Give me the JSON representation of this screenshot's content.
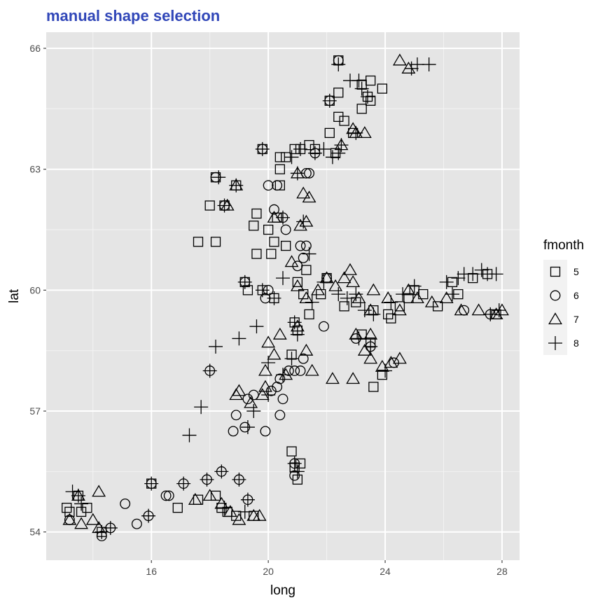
{
  "chart_data": {
    "type": "scatter",
    "title": "manual shape selection",
    "title_color": "#3046b8",
    "xlabel": "long",
    "ylabel": "lat",
    "xlim": [
      12.4,
      28.6
    ],
    "ylim": [
      53.3,
      66.4
    ],
    "xticks": [
      16,
      20,
      24,
      28
    ],
    "yticks": [
      54,
      57,
      60,
      63,
      66
    ],
    "grid": true,
    "panel_color": "#e5e5e5",
    "legend": {
      "title": "fmonth",
      "position": "right",
      "entries": [
        {
          "label": "5",
          "shape": "square"
        },
        {
          "label": "6",
          "shape": "circle"
        },
        {
          "label": "7",
          "shape": "triangle"
        },
        {
          "label": "8",
          "shape": "plus"
        }
      ]
    },
    "series": [
      {
        "name": "5",
        "shape": "square",
        "points": [
          [
            13.1,
            54.6
          ],
          [
            13.2,
            54.5
          ],
          [
            13.6,
            54.5
          ],
          [
            13.8,
            54.6
          ],
          [
            13.5,
            54.9
          ],
          [
            14.3,
            54.0
          ],
          [
            16.0,
            55.2
          ],
          [
            16.9,
            54.6
          ],
          [
            17.6,
            54.8
          ],
          [
            18.2,
            54.9
          ],
          [
            18.4,
            54.6
          ],
          [
            18.6,
            54.5
          ],
          [
            18.9,
            54.4
          ],
          [
            19.5,
            54.4
          ],
          [
            17.6,
            61.2
          ],
          [
            18.2,
            61.2
          ],
          [
            18.0,
            62.1
          ],
          [
            18.2,
            62.8
          ],
          [
            18.5,
            62.1
          ],
          [
            18.9,
            62.6
          ],
          [
            19.2,
            60.2
          ],
          [
            19.3,
            60.0
          ],
          [
            19.5,
            61.6
          ],
          [
            19.6,
            61.9
          ],
          [
            19.6,
            60.9
          ],
          [
            19.8,
            60.0
          ],
          [
            19.8,
            63.5
          ],
          [
            20.0,
            61.5
          ],
          [
            20.1,
            60.9
          ],
          [
            20.2,
            61.2
          ],
          [
            20.2,
            59.8
          ],
          [
            20.3,
            61.8
          ],
          [
            20.4,
            62.6
          ],
          [
            20.4,
            63.3
          ],
          [
            20.4,
            63.0
          ],
          [
            20.6,
            63.3
          ],
          [
            20.6,
            61.1
          ],
          [
            20.9,
            63.5
          ],
          [
            21.1,
            63.5
          ],
          [
            21.4,
            63.6
          ],
          [
            21.6,
            63.5
          ],
          [
            21.3,
            60.5
          ],
          [
            21.0,
            60.2
          ],
          [
            21.2,
            59.9
          ],
          [
            21.4,
            59.4
          ],
          [
            21.8,
            59.9
          ],
          [
            22.0,
            60.3
          ],
          [
            22.1,
            63.9
          ],
          [
            22.3,
            63.4
          ],
          [
            22.1,
            64.7
          ],
          [
            22.4,
            64.9
          ],
          [
            22.4,
            64.3
          ],
          [
            22.6,
            64.2
          ],
          [
            22.4,
            65.7
          ],
          [
            22.9,
            63.9
          ],
          [
            23.2,
            64.5
          ],
          [
            23.2,
            65.1
          ],
          [
            23.4,
            64.8
          ],
          [
            23.5,
            65.2
          ],
          [
            23.5,
            64.7
          ],
          [
            23.9,
            65.0
          ],
          [
            22.6,
            59.6
          ],
          [
            23.0,
            59.7
          ],
          [
            23.2,
            58.9
          ],
          [
            23.5,
            58.7
          ],
          [
            23.6,
            59.5
          ],
          [
            23.6,
            57.6
          ],
          [
            23.9,
            57.9
          ],
          [
            24.1,
            59.4
          ],
          [
            24.2,
            59.3
          ],
          [
            24.5,
            59.6
          ],
          [
            24.8,
            59.8
          ],
          [
            25.0,
            60.0
          ],
          [
            25.3,
            59.9
          ],
          [
            25.8,
            59.6
          ],
          [
            26.3,
            60.2
          ],
          [
            26.5,
            59.9
          ],
          [
            27.0,
            60.3
          ],
          [
            27.5,
            60.4
          ],
          [
            27.8,
            59.4
          ],
          [
            20.8,
            56.0
          ],
          [
            20.9,
            55.6
          ],
          [
            21.0,
            55.3
          ],
          [
            21.1,
            55.7
          ],
          [
            20.9,
            59.2
          ],
          [
            21.0,
            59.0
          ],
          [
            20.8,
            58.4
          ]
        ]
      },
      {
        "name": "6",
        "shape": "circle",
        "points": [
          [
            13.2,
            54.3
          ],
          [
            14.3,
            53.9
          ],
          [
            14.6,
            54.1
          ],
          [
            15.1,
            54.7
          ],
          [
            15.5,
            54.2
          ],
          [
            15.9,
            54.4
          ],
          [
            16.5,
            54.9
          ],
          [
            16.6,
            54.9
          ],
          [
            17.1,
            55.2
          ],
          [
            17.9,
            55.3
          ],
          [
            18.4,
            55.5
          ],
          [
            19.0,
            55.3
          ],
          [
            19.3,
            54.8
          ],
          [
            16.0,
            55.2
          ],
          [
            18.0,
            58.0
          ],
          [
            18.8,
            56.5
          ],
          [
            18.9,
            56.9
          ],
          [
            19.2,
            56.6
          ],
          [
            19.3,
            57.3
          ],
          [
            19.5,
            57.4
          ],
          [
            19.9,
            56.5
          ],
          [
            20.1,
            57.5
          ],
          [
            20.3,
            57.6
          ],
          [
            20.4,
            57.8
          ],
          [
            20.4,
            56.9
          ],
          [
            20.5,
            57.3
          ],
          [
            20.7,
            58.0
          ],
          [
            20.9,
            58.0
          ],
          [
            21.1,
            58.0
          ],
          [
            21.2,
            58.3
          ],
          [
            19.2,
            60.2
          ],
          [
            19.9,
            59.8
          ],
          [
            20.0,
            60.0
          ],
          [
            20.2,
            62.0
          ],
          [
            20.0,
            62.6
          ],
          [
            20.3,
            62.6
          ],
          [
            20.5,
            61.8
          ],
          [
            20.6,
            61.5
          ],
          [
            21.1,
            61.1
          ],
          [
            21.3,
            61.1
          ],
          [
            21.2,
            60.8
          ],
          [
            21.0,
            60.6
          ],
          [
            21.3,
            62.9
          ],
          [
            21.6,
            63.4
          ],
          [
            21.9,
            59.1
          ],
          [
            22.0,
            60.3
          ],
          [
            18.2,
            62.8
          ],
          [
            18.5,
            62.1
          ],
          [
            19.8,
            63.5
          ],
          [
            21.4,
            62.9
          ],
          [
            22.1,
            64.7
          ],
          [
            22.4,
            65.7
          ],
          [
            23.0,
            58.8
          ],
          [
            23.5,
            58.6
          ],
          [
            24.3,
            58.2
          ],
          [
            26.7,
            59.5
          ],
          [
            27.6,
            59.4
          ],
          [
            20.9,
            55.7
          ],
          [
            20.9,
            55.4
          ]
        ]
      },
      {
        "name": "7",
        "shape": "triangle",
        "points": [
          [
            13.2,
            54.3
          ],
          [
            13.5,
            54.9
          ],
          [
            13.6,
            54.2
          ],
          [
            14.0,
            54.3
          ],
          [
            14.2,
            55.0
          ],
          [
            14.2,
            54.1
          ],
          [
            17.5,
            54.8
          ],
          [
            18.0,
            54.9
          ],
          [
            18.4,
            54.7
          ],
          [
            18.7,
            54.5
          ],
          [
            19.0,
            54.3
          ],
          [
            19.5,
            54.4
          ],
          [
            19.7,
            54.4
          ],
          [
            18.9,
            57.4
          ],
          [
            19.0,
            57.5
          ],
          [
            19.4,
            57.2
          ],
          [
            19.8,
            57.4
          ],
          [
            19.9,
            57.6
          ],
          [
            19.9,
            58.0
          ],
          [
            20.0,
            58.7
          ],
          [
            20.2,
            58.4
          ],
          [
            20.4,
            58.9
          ],
          [
            20.6,
            57.9
          ],
          [
            21.5,
            58.0
          ],
          [
            22.2,
            57.8
          ],
          [
            22.9,
            57.8
          ],
          [
            23.5,
            58.3
          ],
          [
            18.9,
            62.6
          ],
          [
            18.6,
            62.1
          ],
          [
            20.2,
            61.8
          ],
          [
            21.1,
            61.6
          ],
          [
            21.3,
            61.7
          ],
          [
            21.2,
            62.4
          ],
          [
            21.4,
            62.3
          ],
          [
            21.0,
            62.9
          ],
          [
            22.5,
            63.6
          ],
          [
            23.0,
            63.9
          ],
          [
            22.9,
            64.0
          ],
          [
            23.3,
            63.9
          ],
          [
            24.5,
            65.7
          ],
          [
            24.8,
            65.5
          ],
          [
            20.8,
            60.7
          ],
          [
            21.0,
            60.1
          ],
          [
            21.3,
            59.8
          ],
          [
            21.7,
            60.0
          ],
          [
            22.0,
            60.3
          ],
          [
            22.3,
            60.1
          ],
          [
            22.6,
            60.3
          ],
          [
            22.9,
            60.2
          ],
          [
            23.1,
            59.8
          ],
          [
            23.5,
            59.5
          ],
          [
            23.6,
            60.0
          ],
          [
            24.1,
            59.8
          ],
          [
            24.5,
            59.5
          ],
          [
            24.8,
            60.0
          ],
          [
            25.1,
            59.8
          ],
          [
            25.6,
            59.7
          ],
          [
            26.1,
            59.8
          ],
          [
            26.6,
            59.5
          ],
          [
            27.2,
            59.5
          ],
          [
            27.8,
            59.4
          ],
          [
            28.0,
            59.5
          ],
          [
            23.0,
            58.9
          ],
          [
            23.3,
            58.5
          ],
          [
            23.5,
            58.9
          ],
          [
            23.9,
            58.1
          ],
          [
            24.2,
            58.2
          ],
          [
            24.5,
            58.3
          ],
          [
            21.0,
            59.1
          ],
          [
            21.3,
            58.5
          ],
          [
            22.8,
            60.5
          ]
        ]
      },
      {
        "name": "8",
        "shape": "plus",
        "points": [
          [
            13.3,
            55.0
          ],
          [
            13.5,
            54.9
          ],
          [
            13.6,
            54.7
          ],
          [
            14.3,
            54.0
          ],
          [
            14.6,
            54.1
          ],
          [
            15.9,
            54.4
          ],
          [
            16.0,
            55.2
          ],
          [
            17.1,
            55.2
          ],
          [
            17.9,
            55.3
          ],
          [
            18.4,
            55.5
          ],
          [
            19.0,
            55.3
          ],
          [
            19.3,
            54.8
          ],
          [
            18.5,
            54.6
          ],
          [
            19.2,
            54.5
          ],
          [
            17.3,
            56.4
          ],
          [
            17.7,
            57.1
          ],
          [
            18.2,
            58.6
          ],
          [
            19.0,
            58.8
          ],
          [
            19.6,
            59.1
          ],
          [
            20.5,
            60.3
          ],
          [
            18.0,
            58.0
          ],
          [
            19.3,
            56.6
          ],
          [
            20.0,
            57.4
          ],
          [
            19.5,
            57.0
          ],
          [
            20.0,
            58.2
          ],
          [
            20.5,
            57.9
          ],
          [
            20.8,
            58.3
          ],
          [
            18.3,
            62.8
          ],
          [
            18.5,
            62.1
          ],
          [
            18.9,
            62.6
          ],
          [
            19.2,
            60.2
          ],
          [
            19.8,
            63.5
          ],
          [
            19.8,
            60.0
          ],
          [
            20.2,
            59.8
          ],
          [
            20.5,
            61.8
          ],
          [
            20.8,
            63.3
          ],
          [
            21.1,
            63.5
          ],
          [
            21.6,
            63.4
          ],
          [
            21.9,
            63.5
          ],
          [
            22.2,
            63.3
          ],
          [
            22.4,
            63.4
          ],
          [
            21.0,
            62.9
          ],
          [
            21.2,
            61.7
          ],
          [
            21.4,
            60.9
          ],
          [
            21.5,
            59.7
          ],
          [
            21.9,
            60.2
          ],
          [
            22.4,
            59.9
          ],
          [
            22.7,
            59.8
          ],
          [
            23.0,
            59.9
          ],
          [
            23.3,
            59.5
          ],
          [
            23.6,
            59.4
          ],
          [
            23.1,
            58.8
          ],
          [
            23.5,
            58.6
          ],
          [
            24.0,
            58.0
          ],
          [
            24.2,
            59.7
          ],
          [
            24.6,
            59.9
          ],
          [
            25.0,
            60.1
          ],
          [
            22.1,
            64.7
          ],
          [
            22.4,
            65.6
          ],
          [
            22.8,
            65.2
          ],
          [
            23.1,
            65.2
          ],
          [
            23.2,
            65.0
          ],
          [
            23.4,
            64.8
          ],
          [
            24.9,
            65.5
          ],
          [
            25.1,
            65.6
          ],
          [
            25.5,
            65.6
          ],
          [
            22.5,
            63.6
          ],
          [
            23.0,
            63.9
          ],
          [
            26.1,
            60.2
          ],
          [
            26.5,
            60.3
          ],
          [
            26.7,
            60.4
          ],
          [
            27.0,
            60.4
          ],
          [
            27.3,
            60.5
          ],
          [
            27.5,
            60.4
          ],
          [
            27.8,
            60.4
          ],
          [
            26.3,
            59.9
          ],
          [
            27.6,
            59.4
          ],
          [
            27.9,
            59.5
          ],
          [
            20.9,
            55.7
          ],
          [
            21.0,
            55.5
          ],
          [
            20.9,
            59.2
          ],
          [
            21.0,
            58.9
          ]
        ]
      }
    ]
  }
}
